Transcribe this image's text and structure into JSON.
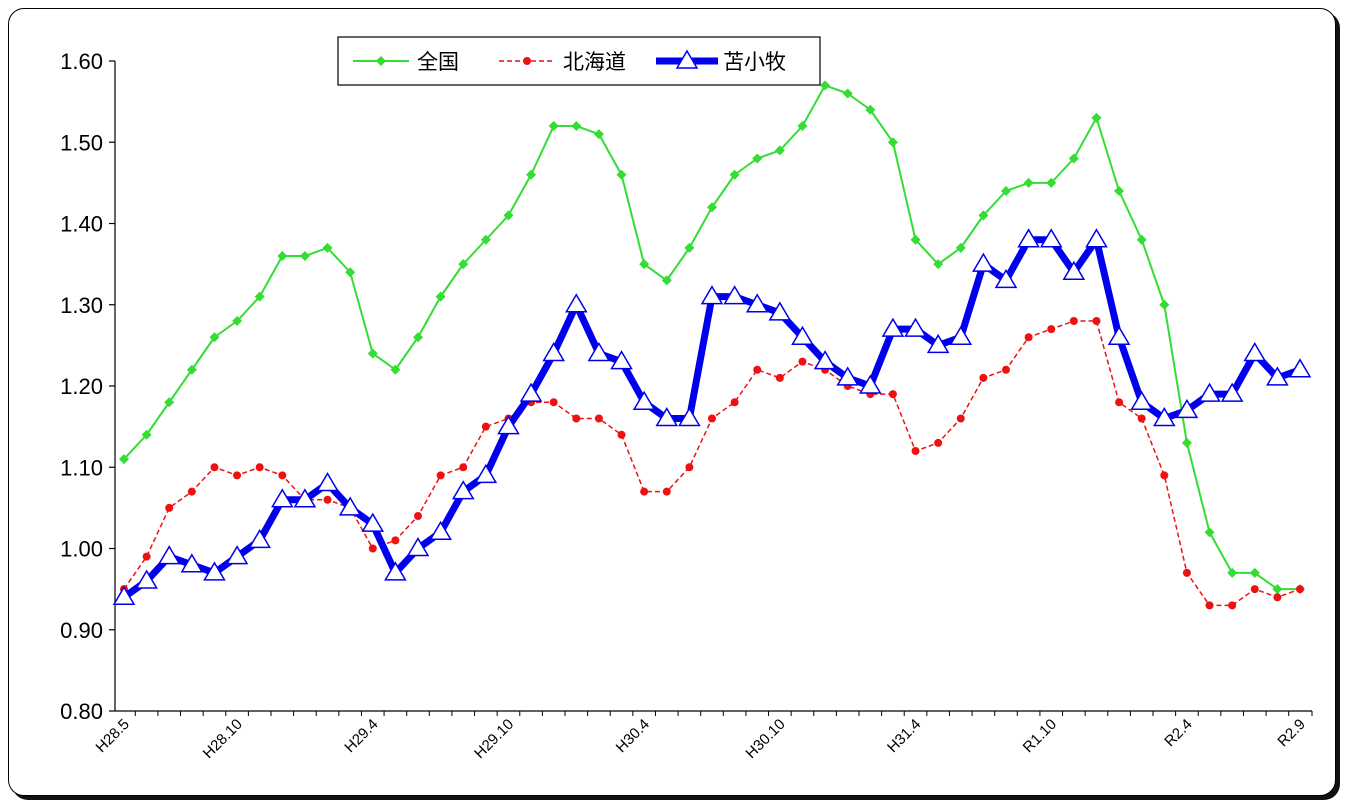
{
  "chart_data": {
    "type": "line",
    "title": "",
    "xlabel": "",
    "ylabel": "",
    "ylim": [
      0.8,
      1.6
    ],
    "y_ticks": [
      "0.80",
      "0.90",
      "1.00",
      "1.10",
      "1.20",
      "1.30",
      "1.40",
      "1.50",
      "1.60"
    ],
    "x_tick_labels": [
      {
        "index": 0,
        "label": "H28.5"
      },
      {
        "index": 5,
        "label": "H28.10"
      },
      {
        "index": 11,
        "label": "H29.4"
      },
      {
        "index": 17,
        "label": "H29.10"
      },
      {
        "index": 23,
        "label": "H30.4"
      },
      {
        "index": 29,
        "label": "H30.10"
      },
      {
        "index": 35,
        "label": "H31.4"
      },
      {
        "index": 41,
        "label": "R1.10"
      },
      {
        "index": 47,
        "label": "R2.4"
      },
      {
        "index": 52,
        "label": "R2.9"
      }
    ],
    "legend_position": "top-left",
    "series": [
      {
        "name": "全国",
        "color": "#33dd33",
        "style": "solid-diamond",
        "values": [
          1.11,
          1.14,
          1.18,
          1.22,
          1.26,
          1.28,
          1.31,
          1.36,
          1.36,
          1.37,
          1.34,
          1.24,
          1.22,
          1.26,
          1.31,
          1.35,
          1.38,
          1.41,
          1.46,
          1.52,
          1.52,
          1.51,
          1.46,
          1.35,
          1.33,
          1.37,
          1.42,
          1.46,
          1.48,
          1.49,
          1.52,
          1.57,
          1.56,
          1.54,
          1.5,
          1.38,
          1.35,
          1.37,
          1.41,
          1.44,
          1.45,
          1.45,
          1.48,
          1.53,
          1.44,
          1.38,
          1.3,
          1.13,
          1.02,
          0.97,
          0.97,
          0.95,
          0.95
        ]
      },
      {
        "name": "北海道",
        "color": "#ee1111",
        "style": "dashed-circle",
        "values": [
          0.95,
          0.99,
          1.05,
          1.07,
          1.1,
          1.09,
          1.1,
          1.09,
          1.06,
          1.06,
          1.05,
          1.0,
          1.01,
          1.04,
          1.09,
          1.1,
          1.15,
          1.16,
          1.18,
          1.18,
          1.16,
          1.16,
          1.14,
          1.07,
          1.07,
          1.1,
          1.16,
          1.18,
          1.22,
          1.21,
          1.23,
          1.22,
          1.2,
          1.19,
          1.19,
          1.12,
          1.13,
          1.16,
          1.21,
          1.22,
          1.26,
          1.27,
          1.28,
          1.28,
          1.18,
          1.16,
          1.09,
          0.97,
          0.93,
          0.93,
          0.95,
          0.94,
          0.95
        ]
      },
      {
        "name": "苫小牧",
        "color": "#0000ee",
        "style": "thick-triangle",
        "values": [
          0.94,
          0.96,
          0.99,
          0.98,
          0.97,
          0.99,
          1.01,
          1.06,
          1.06,
          1.08,
          1.05,
          1.03,
          0.97,
          1.0,
          1.02,
          1.07,
          1.09,
          1.15,
          1.19,
          1.24,
          1.3,
          1.24,
          1.23,
          1.18,
          1.16,
          1.16,
          1.31,
          1.31,
          1.3,
          1.29,
          1.26,
          1.23,
          1.21,
          1.2,
          1.27,
          1.27,
          1.25,
          1.26,
          1.35,
          1.33,
          1.38,
          1.38,
          1.34,
          1.38,
          1.26,
          1.18,
          1.16,
          1.17,
          1.19,
          1.19,
          1.24,
          1.21,
          1.22
        ]
      }
    ]
  }
}
